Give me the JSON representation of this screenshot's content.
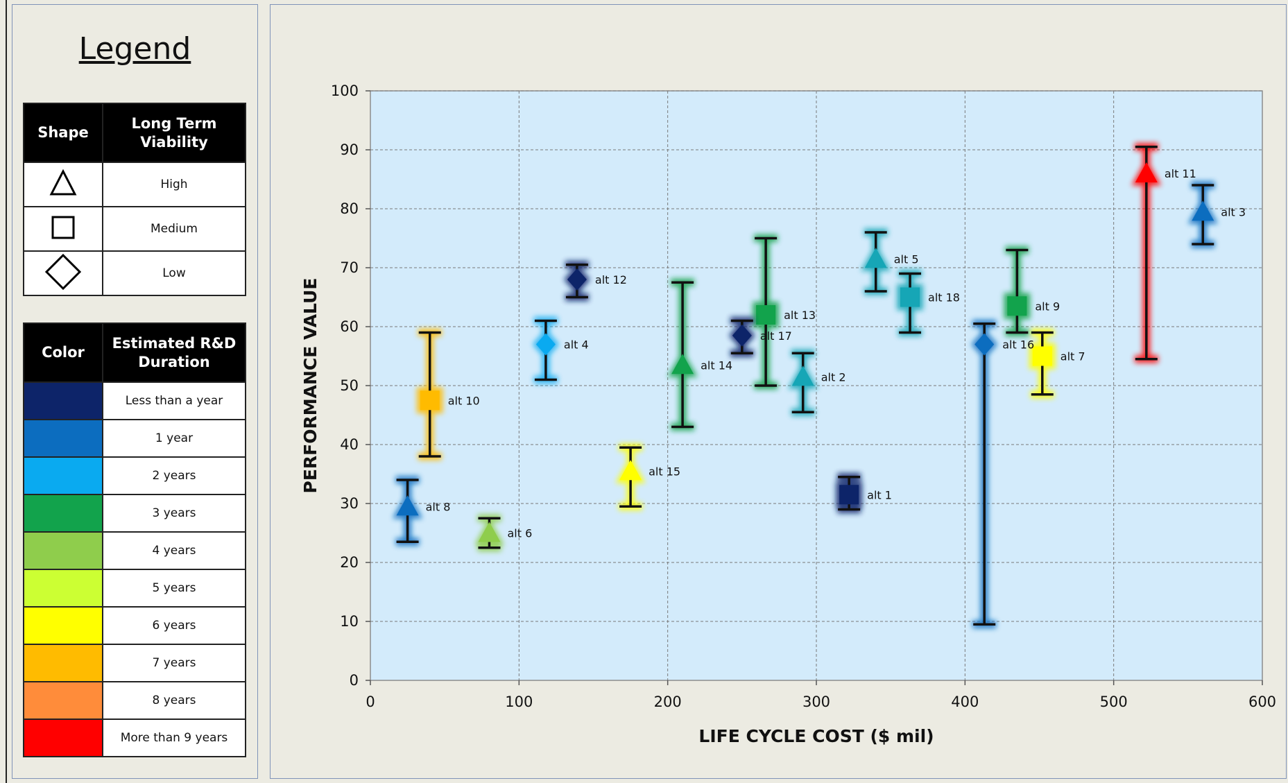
{
  "legend": {
    "title": "Legend",
    "shape_header": "Shape",
    "viability_header": "Long Term Viability",
    "shapes": [
      {
        "shape": "triangle",
        "label": "High"
      },
      {
        "shape": "square",
        "label": "Medium"
      },
      {
        "shape": "diamond",
        "label": "Low"
      }
    ],
    "color_header": "Color",
    "duration_header": "Estimated R&D Duration",
    "colors": [
      {
        "color": "#0d2469",
        "label": "Less than a year"
      },
      {
        "color": "#0c6dbf",
        "label": "1 year"
      },
      {
        "color": "#0aaaf0",
        "label": "2 years"
      },
      {
        "color": "#12a34c",
        "label": "3 years"
      },
      {
        "color": "#8fcd4c",
        "label": "4 years"
      },
      {
        "color": "#ccff33",
        "label": "5 years"
      },
      {
        "color": "#ffff00",
        "label": "6 years"
      },
      {
        "color": "#ffbb00",
        "label": "7 years"
      },
      {
        "color": "#ff8c3a",
        "label": "8 years"
      },
      {
        "color": "#ff0000",
        "label": "More than 9 years"
      }
    ]
  },
  "chart_data": {
    "type": "scatter",
    "xlabel": "LIFE CYCLE COST ($ mil)",
    "ylabel": "PERFORMANCE  VALUE",
    "xlim": [
      0,
      600
    ],
    "ylim": [
      0,
      100
    ],
    "x_ticks": [
      0,
      100,
      200,
      300,
      400,
      500,
      600
    ],
    "y_ticks": [
      0,
      10,
      20,
      30,
      40,
      50,
      60,
      70,
      80,
      90,
      100
    ],
    "grid": true,
    "error_bars": true,
    "points": [
      {
        "label": "alt 1",
        "x": 322,
        "y": 31.5,
        "y_low": 29,
        "y_high": 34.5,
        "shape": "square",
        "color": "#0d2469"
      },
      {
        "label": "alt 2",
        "x": 291,
        "y": 51.5,
        "y_low": 45.5,
        "y_high": 55.5,
        "shape": "triangle",
        "color": "#16a6b6"
      },
      {
        "label": "alt 3",
        "x": 560,
        "y": 79.5,
        "y_low": 74,
        "y_high": 84,
        "shape": "triangle",
        "color": "#0c6dbf"
      },
      {
        "label": "alt 4",
        "x": 118,
        "y": 57,
        "y_low": 51,
        "y_high": 61,
        "shape": "diamond",
        "color": "#0aaaf0"
      },
      {
        "label": "alt 5",
        "x": 340,
        "y": 71.5,
        "y_low": 66,
        "y_high": 76,
        "shape": "triangle",
        "color": "#16a6b6"
      },
      {
        "label": "alt 6",
        "x": 80,
        "y": 25,
        "y_low": 22.5,
        "y_high": 27.5,
        "shape": "triangle",
        "color": "#8fcd4c"
      },
      {
        "label": "alt 7",
        "x": 452,
        "y": 55,
        "y_low": 48.5,
        "y_high": 59,
        "shape": "square",
        "color": "#ffff00"
      },
      {
        "label": "alt 8",
        "x": 25,
        "y": 29.5,
        "y_low": 23.5,
        "y_high": 34,
        "shape": "triangle",
        "color": "#0c6dbf"
      },
      {
        "label": "alt 9",
        "x": 435,
        "y": 63.5,
        "y_low": 59,
        "y_high": 73,
        "shape": "square",
        "color": "#12a34c"
      },
      {
        "label": "alt 10",
        "x": 40,
        "y": 47.5,
        "y_low": 38,
        "y_high": 59,
        "shape": "square",
        "color": "#ffbb00"
      },
      {
        "label": "alt 11",
        "x": 522,
        "y": 86,
        "y_low": 54.5,
        "y_high": 90.5,
        "shape": "triangle",
        "color": "#ff0000"
      },
      {
        "label": "alt 12",
        "x": 139,
        "y": 68,
        "y_low": 65,
        "y_high": 70.5,
        "shape": "diamond",
        "color": "#0d2469"
      },
      {
        "label": "alt 13",
        "x": 266,
        "y": 62,
        "y_low": 50,
        "y_high": 75,
        "shape": "square",
        "color": "#12a34c"
      },
      {
        "label": "alt 14",
        "x": 210,
        "y": 53.5,
        "y_low": 43,
        "y_high": 67.5,
        "shape": "triangle",
        "color": "#12a34c"
      },
      {
        "label": "alt 15",
        "x": 175,
        "y": 35.5,
        "y_low": 29.5,
        "y_high": 39.5,
        "shape": "triangle",
        "color": "#ffff00"
      },
      {
        "label": "alt 16",
        "x": 413,
        "y": 57,
        "y_low": 9.5,
        "y_high": 60.5,
        "shape": "diamond",
        "color": "#0c6dbf"
      },
      {
        "label": "alt 17",
        "x": 250,
        "y": 58.5,
        "y_low": 55.5,
        "y_high": 61,
        "shape": "diamond",
        "color": "#0d2469"
      },
      {
        "label": "alt 18",
        "x": 363,
        "y": 65,
        "y_low": 59,
        "y_high": 69,
        "shape": "square",
        "color": "#16a6b6"
      }
    ]
  }
}
